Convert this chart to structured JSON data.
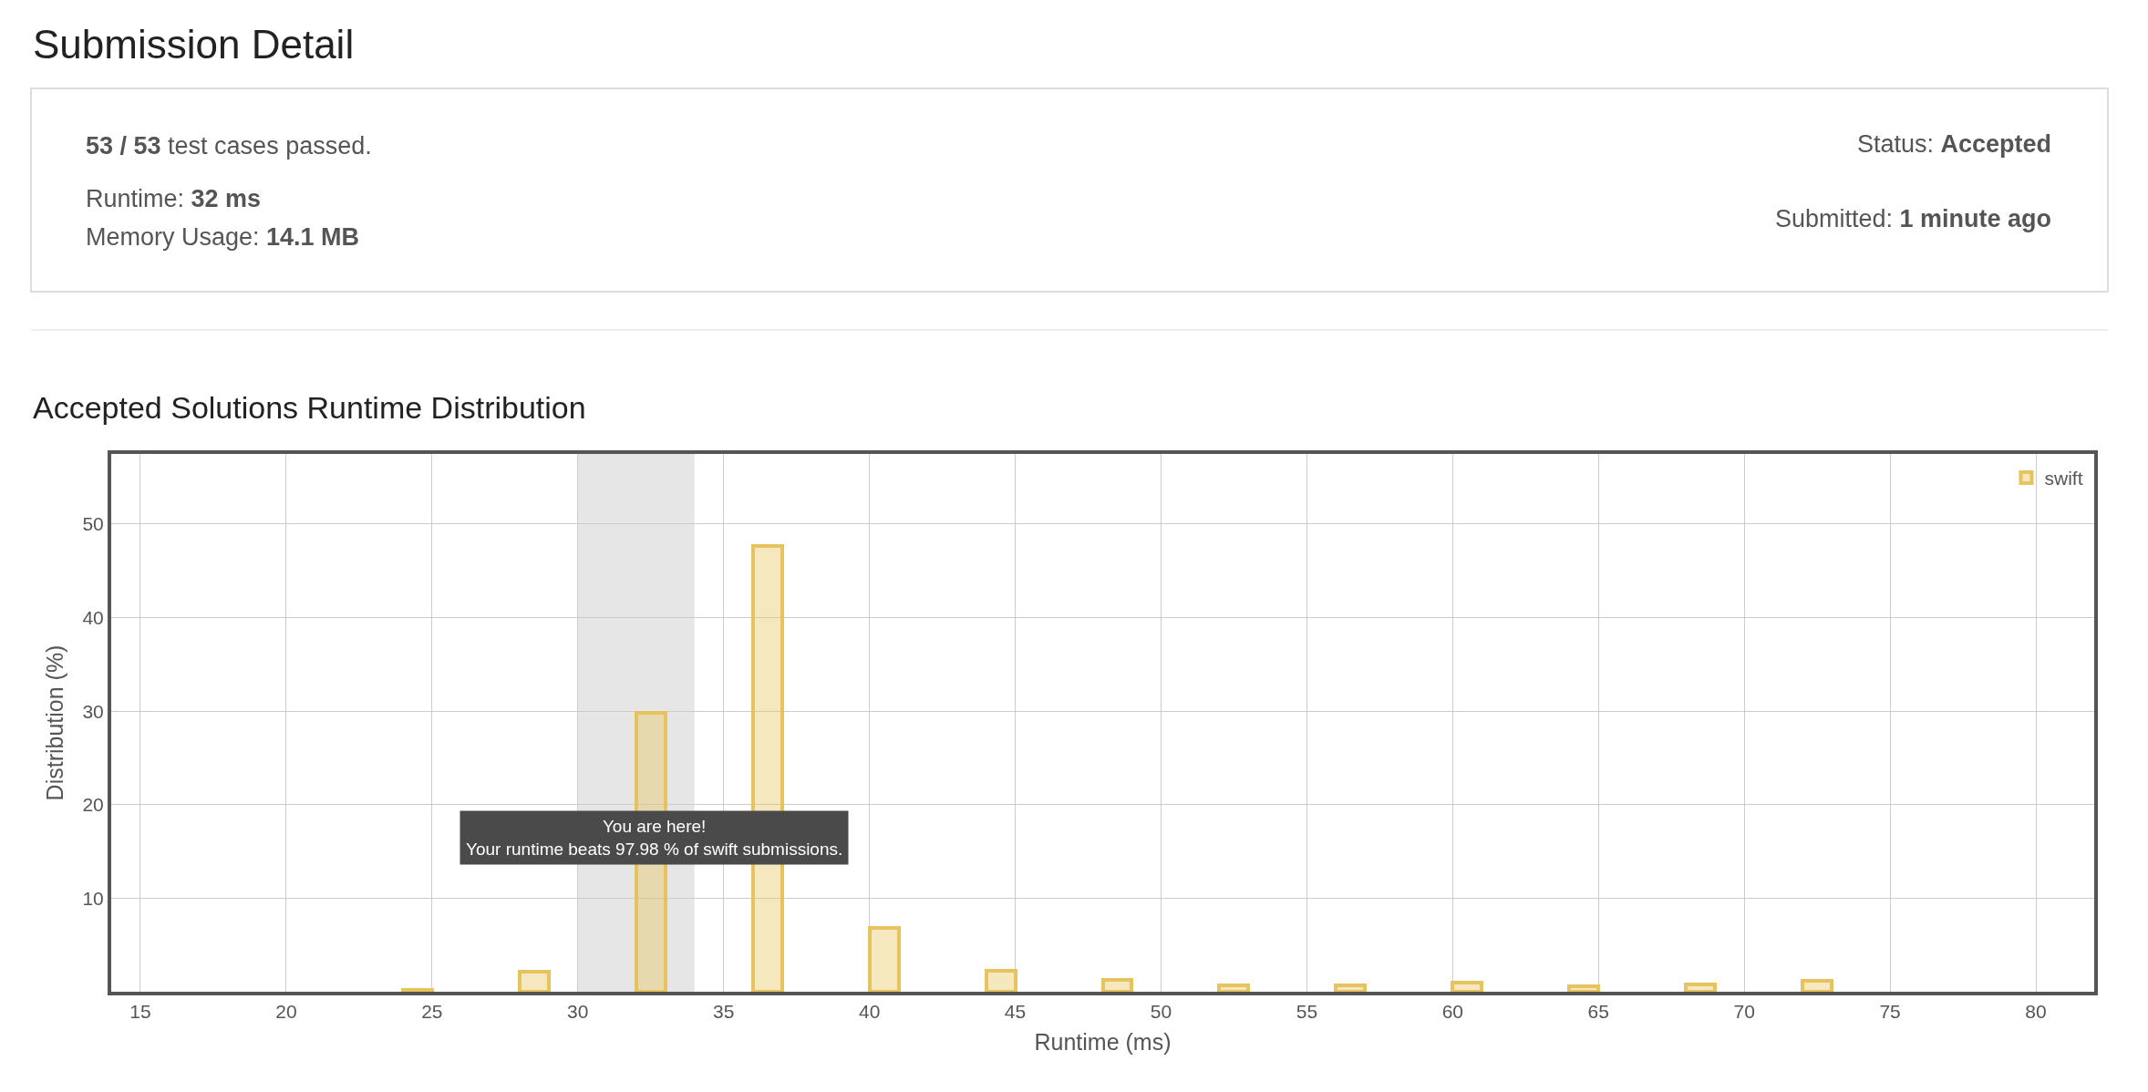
{
  "chart_data": [
    {
      "type": "other",
      "title": "Submission Detail",
      "annotations": [
        "53 / 53 test cases passed.",
        "Runtime: 32 ms",
        "Memory Usage: 14.1 MB",
        "Status: Accepted",
        "Submitted: 1 minute ago"
      ]
    },
    {
      "type": "bar",
      "title": "Accepted Solutions Runtime Distribution",
      "xlabel": "Runtime (ms)",
      "ylabel": "Distribution (%)",
      "x": [
        24.5,
        28.5,
        32.5,
        36.5,
        40.5,
        44.5,
        48.5,
        52.5,
        56.5,
        60.5,
        64.5,
        68.5,
        72.5
      ],
      "series": [
        {
          "name": "swift",
          "color": "#e6c35c",
          "values": [
            0.2,
            2.1,
            29.8,
            47.7,
            6.8,
            2.2,
            1.3,
            0.7,
            0.7,
            1.0,
            0.6,
            0.8,
            1.2
          ]
        }
      ],
      "xlim": [
        14,
        82
      ],
      "xticks": [
        15,
        20,
        25,
        30,
        35,
        40,
        45,
        50,
        55,
        60,
        65,
        70,
        75,
        80
      ],
      "ylim": [
        0,
        57.5
      ],
      "yticks": [
        10,
        20,
        30,
        40,
        50
      ],
      "bands": [
        {
          "axis": "x",
          "from": 30,
          "to": 34,
          "color": "#e6e6e6"
        }
      ],
      "annotations": [
        "You are here!\nYour runtime beats 97.98 % of swift submissions."
      ],
      "grid": true,
      "legend": "top right"
    }
  ]
}
